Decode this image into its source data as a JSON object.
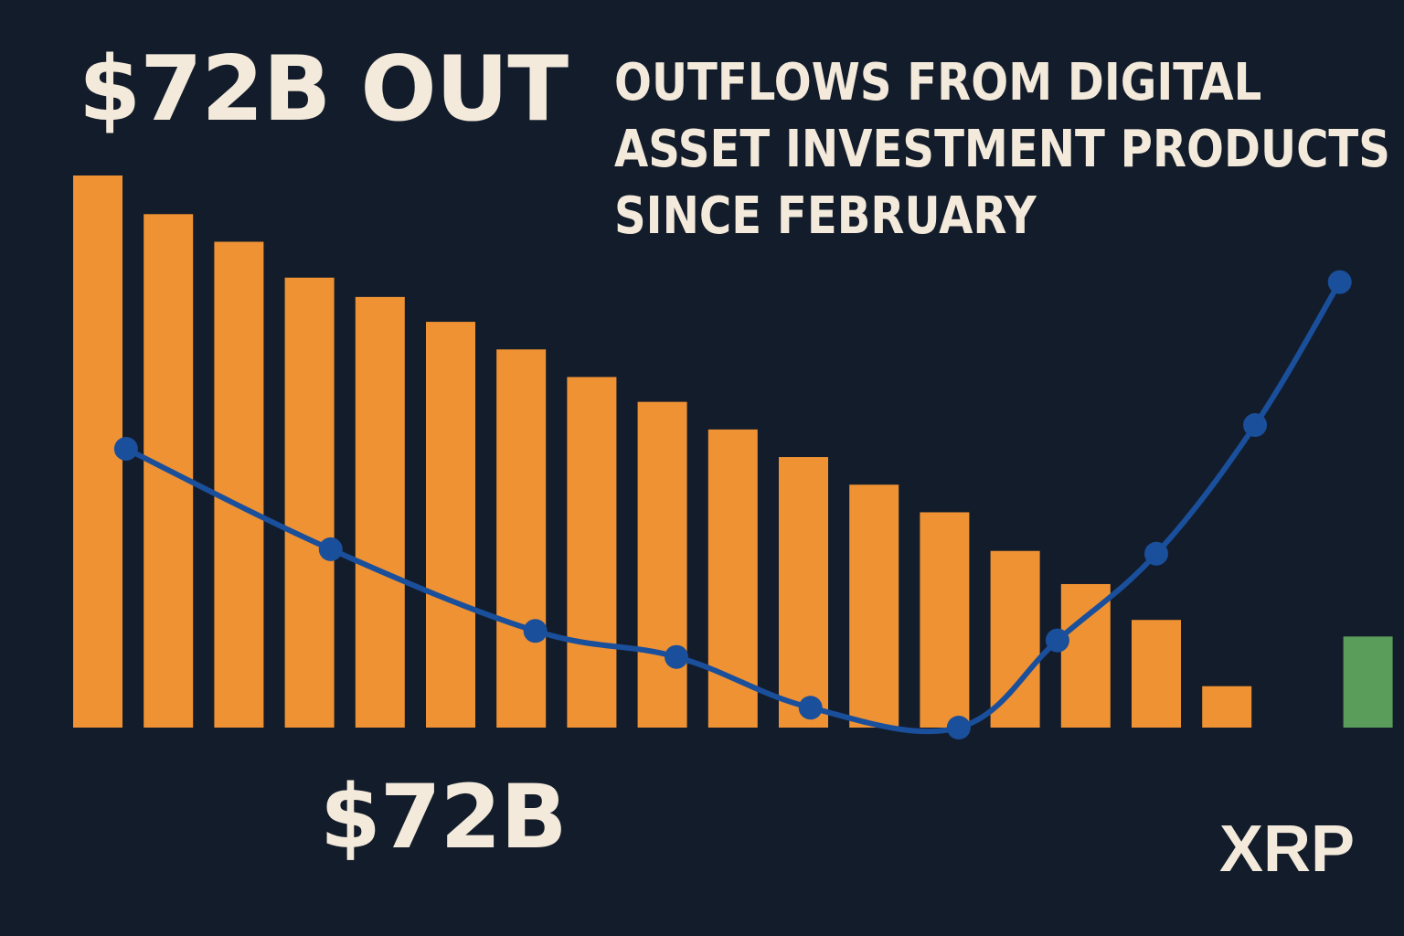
{
  "headline": "$72B OUT",
  "subtitle_lines": [
    "OUTFLOWS FROM DIGITAL",
    "ASSET INVESTMENT PRODUCTS",
    "SINCE FEBRUARY"
  ],
  "bottom_label": "$72B",
  "xrp_label": "XRP",
  "colors": {
    "background": "#131c2b",
    "text": "#f3eadb",
    "bar": "#ef9233",
    "highlight_bar": "#5a9d5a",
    "line": "#1a4f9c"
  },
  "chart_data": {
    "type": "bar",
    "title": "OUTFLOWS FROM DIGITAL ASSET INVESTMENT PRODUCTS SINCE FEBRUARY",
    "xlabel": "",
    "ylabel": "",
    "ylim": [
      0,
      100
    ],
    "grid": false,
    "legend": "none",
    "categories": [
      "",
      "",
      "",
      "",
      "",
      "",
      "",
      "",
      "",
      "",
      "",
      "",
      "",
      "",
      "",
      "",
      "",
      "",
      ""
    ],
    "bar_values": [
      100,
      93,
      88,
      81.5,
      78,
      73.5,
      68.5,
      63.5,
      59,
      54,
      49,
      44,
      39,
      32,
      26,
      19.5,
      7.5,
      null,
      16.5
    ],
    "highlight_index": 18,
    "line_series": {
      "x": [
        0.4,
        3.3,
        6.2,
        8.2,
        10.1,
        12.2,
        13.6,
        15.0,
        16.4,
        17.6
      ],
      "values": [
        50.5,
        32.3,
        17.5,
        12.8,
        3.6,
        0,
        15.8,
        31.5,
        54.8,
        80.7
      ]
    }
  }
}
